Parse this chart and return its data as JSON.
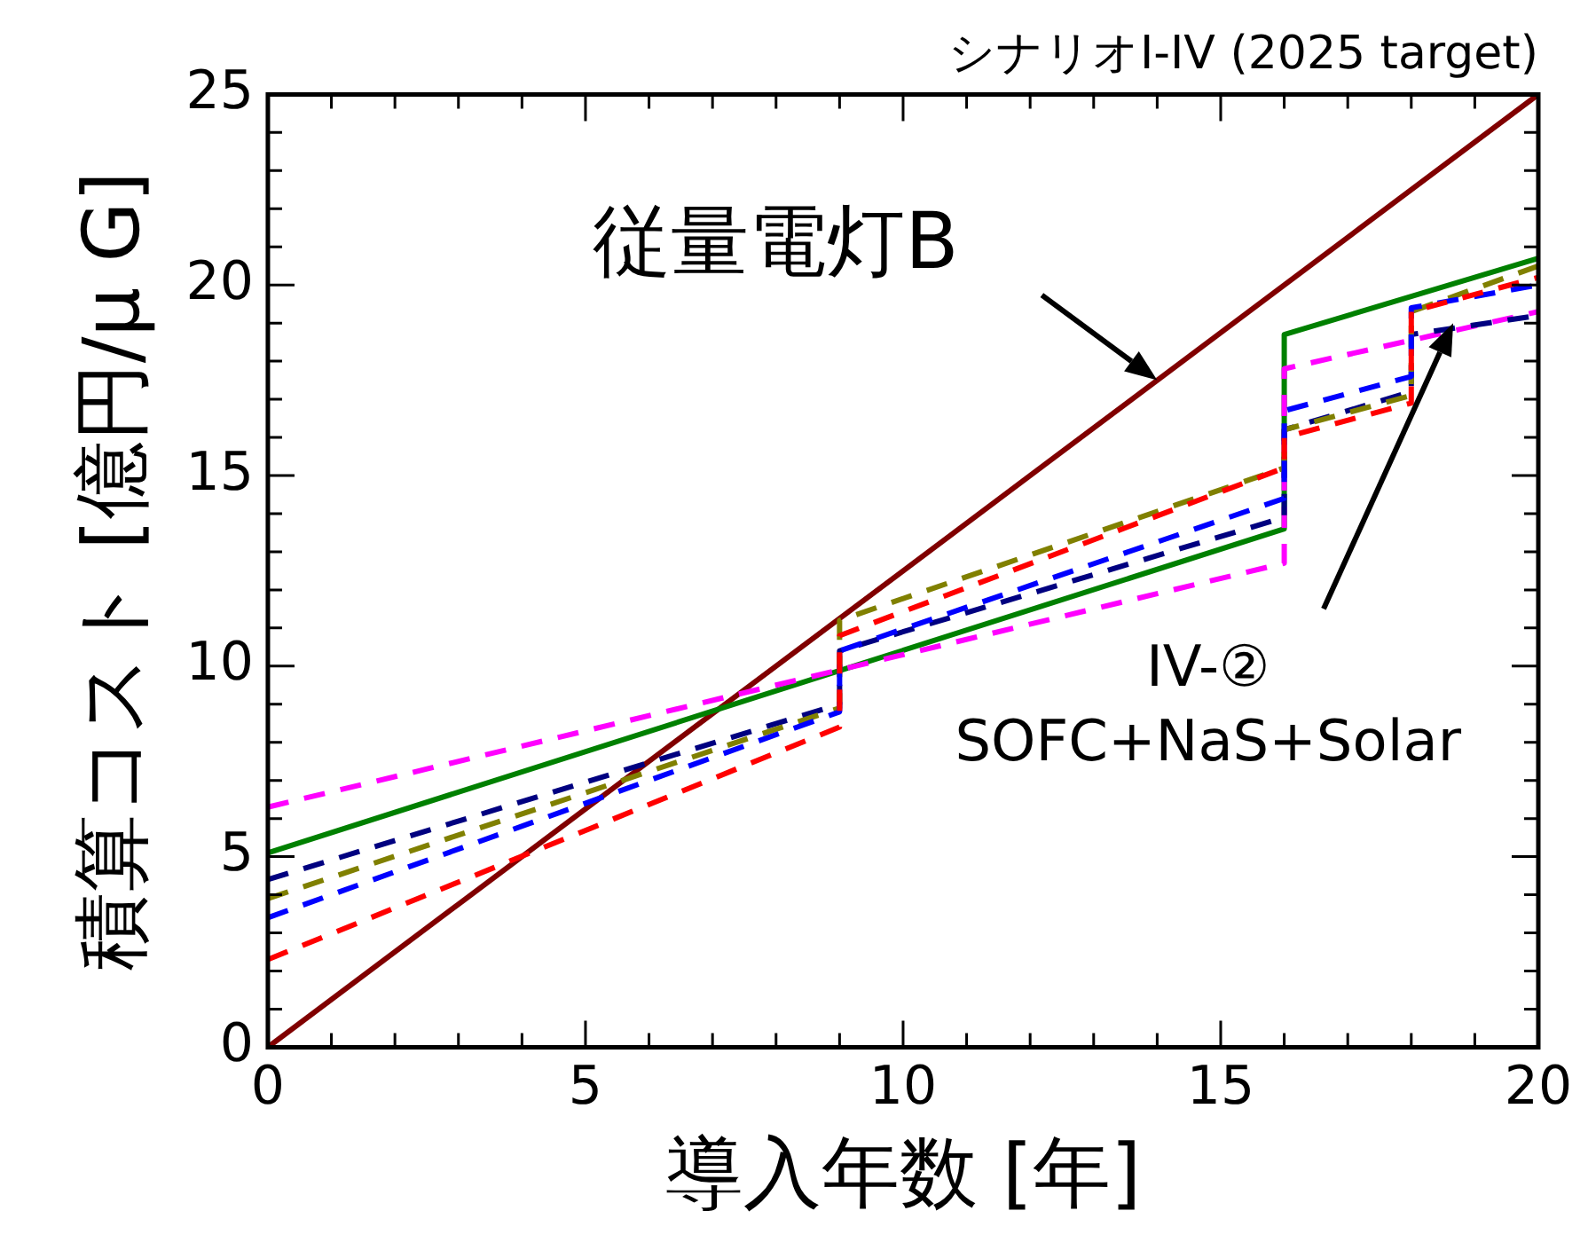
{
  "chart_data": {
    "type": "line",
    "title": "シナリオI-IV (2025 target)",
    "xlabel": "導入年数 [年]",
    "ylabel": "積算コスト [億円/μ G]",
    "xlim": [
      0,
      20
    ],
    "ylim": [
      0,
      25
    ],
    "xticks": [
      0,
      {
        "value": 1,
        "label": null
      },
      {
        "value": 2,
        "label": null
      },
      {
        "value": 3,
        "label": null
      },
      {
        "value": 4,
        "label": null
      },
      5,
      {
        "value": 6,
        "label": null
      },
      {
        "value": 7,
        "label": null
      },
      {
        "value": 8,
        "label": null
      },
      {
        "value": 9,
        "label": null
      },
      10,
      {
        "value": 11,
        "label": null
      },
      {
        "value": 12,
        "label": null
      },
      {
        "value": 13,
        "label": null
      },
      {
        "value": 14,
        "label": null
      },
      15,
      {
        "value": 16,
        "label": null
      },
      {
        "value": 17,
        "label": null
      },
      {
        "value": 18,
        "label": null
      },
      {
        "value": 19,
        "label": null
      },
      20
    ],
    "yticks": [
      0,
      {
        "value": 1,
        "label": null
      },
      {
        "value": 2,
        "label": null
      },
      {
        "value": 3,
        "label": null
      },
      {
        "value": 4,
        "label": null
      },
      5,
      {
        "value": 6,
        "label": null
      },
      {
        "value": 7,
        "label": null
      },
      {
        "value": 8,
        "label": null
      },
      {
        "value": 9,
        "label": null
      },
      10,
      {
        "value": 11,
        "label": null
      },
      {
        "value": 12,
        "label": null
      },
      {
        "value": 13,
        "label": null
      },
      {
        "value": 14,
        "label": null
      },
      15,
      {
        "value": 16,
        "label": null
      },
      {
        "value": 17,
        "label": null
      },
      {
        "value": 18,
        "label": null
      },
      {
        "value": 19,
        "label": null
      },
      20,
      {
        "value": 21,
        "label": null
      },
      {
        "value": 22,
        "label": null
      },
      {
        "value": 23,
        "label": null
      },
      {
        "value": 24,
        "label": null
      },
      25
    ],
    "grid": false,
    "legend": false,
    "marker": "none",
    "series": [
      {
        "color": "#ff0000",
        "line_style": "dashed",
        "x": [
          0,
          9,
          9,
          16,
          16,
          18,
          18,
          20
        ],
        "values": [
          2.3,
          8.4,
          10.8,
          15.2,
          16.0,
          16.9,
          19.3,
          20.2
        ]
      },
      {
        "color": "#0000ff",
        "line_style": "dashed",
        "x": [
          0,
          9,
          9,
          16,
          16,
          18,
          18,
          20
        ],
        "values": [
          3.4,
          8.8,
          10.4,
          14.4,
          16.7,
          17.6,
          19.4,
          20.0
        ]
      },
      {
        "color": "#808000",
        "line_style": "dashed",
        "x": [
          0,
          9,
          9,
          16,
          16,
          18,
          18,
          20
        ],
        "values": [
          3.9,
          8.9,
          11.2,
          15.2,
          16.2,
          17.1,
          19.3,
          20.5
        ]
      },
      {
        "color": "#000080",
        "line_style": "dashed",
        "x": [
          0,
          9,
          9,
          16,
          16,
          18,
          18,
          20
        ],
        "values": [
          4.4,
          9.0,
          10.4,
          13.9,
          16.2,
          17.2,
          18.7,
          19.2
        ]
      },
      {
        "color": "#ff00ff",
        "line_style": "dashed",
        "x": [
          0,
          16,
          16,
          20
        ],
        "values": [
          6.3,
          12.7,
          17.8,
          19.3
        ]
      },
      {
        "color": "#008000",
        "line_style": "solid",
        "x": [
          0,
          16,
          16,
          20
        ],
        "values": [
          5.1,
          13.6,
          18.7,
          20.7
        ]
      },
      {
        "color": "#800000",
        "line_style": "solid",
        "x": [
          0,
          20
        ],
        "values": [
          0,
          25
        ]
      }
    ],
    "annotations": [
      {
        "text": "従量電灯B",
        "x": 14,
        "y": 17.5
      },
      "IV-②\nSOFC+NaS+Solar"
    ]
  }
}
